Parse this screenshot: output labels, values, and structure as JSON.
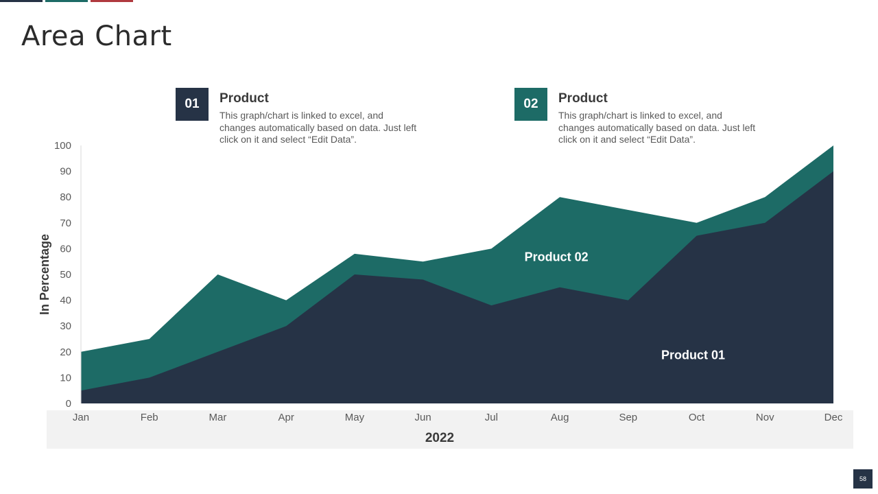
{
  "slide": {
    "title": "Area Chart",
    "page_number": "58",
    "accent_colors": [
      "#263346",
      "#1d6b66",
      "#b03a3f"
    ]
  },
  "cards": [
    {
      "number": "01",
      "title": "Product",
      "description": "This graph/chart is linked to excel, and changes automatically based on data. Just left click on it and select “Edit Data”.",
      "color": "#263346"
    },
    {
      "number": "02",
      "title": "Product",
      "description": "This graph/chart is linked to excel, and changes automatically based on data. Just left click on it and select “Edit Data”.",
      "color": "#1d6b66"
    }
  ],
  "chart_data": {
    "type": "area",
    "categories": [
      "Jan",
      "Feb",
      "Mar",
      "Apr",
      "May",
      "Jun",
      "Jul",
      "Aug",
      "Sep",
      "Oct",
      "Nov",
      "Dec"
    ],
    "series": [
      {
        "name": "Product 02",
        "values": [
          20,
          25,
          50,
          40,
          58,
          55,
          60,
          80,
          75,
          70,
          80,
          100
        ],
        "color": "#1d6b66"
      },
      {
        "name": "Product 01",
        "values": [
          5,
          10,
          20,
          30,
          50,
          48,
          38,
          45,
          40,
          65,
          70,
          90
        ],
        "color": "#263346"
      }
    ],
    "xlabel": "2022",
    "ylabel": "In Percentage",
    "ylim": [
      0,
      100
    ],
    "yticks": [
      0,
      10,
      20,
      30,
      40,
      50,
      60,
      70,
      80,
      90,
      100
    ],
    "grid": false,
    "legend": "none",
    "annotations": [
      {
        "text": "Product 02",
        "series": "Product 02",
        "x": "Aug",
        "y": 57
      },
      {
        "text": "Product 01",
        "series": "Product 01",
        "x": "Oct",
        "y": 19
      }
    ],
    "xaxis_band_color": "#f2f2f2"
  }
}
